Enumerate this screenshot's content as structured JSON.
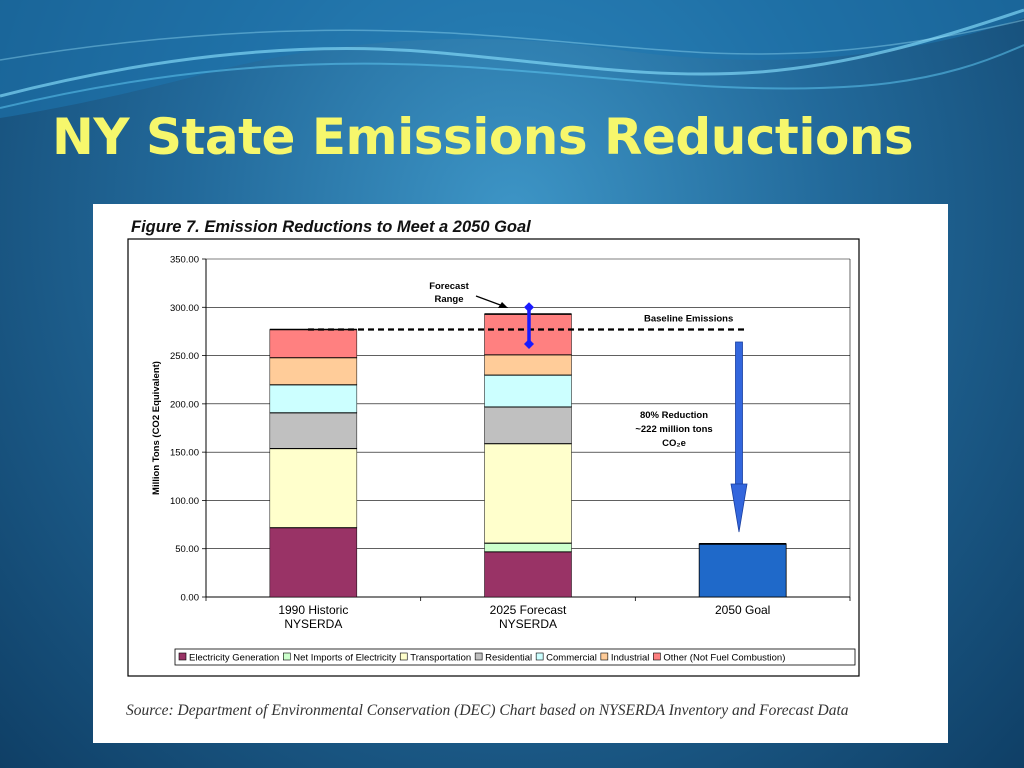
{
  "slide": {
    "title": "NY State Emissions Reductions",
    "source": "Source: Department of Environmental Conservation (DEC) Chart based on NYSERDA Inventory and Forecast Data"
  },
  "colors": {
    "title": "#f6f76c",
    "background": "#22699a",
    "arrow": "#3366dd",
    "forecast_range": "#1a1aff",
    "goal_bar": "#1f69c9"
  },
  "chart_data": {
    "type": "bar",
    "stacked": true,
    "title": "Figure 7.  Emission Reductions to Meet a 2050 Goal",
    "ylabel": "Million Tons (CO2 Equivalent)",
    "xlabel": "",
    "ylim": [
      0,
      350
    ],
    "yticks": [
      "0.00",
      "50.00",
      "100.00",
      "150.00",
      "200.00",
      "250.00",
      "300.00",
      "350.00"
    ],
    "grid": true,
    "legend_position": "bottom",
    "categories": [
      "1990 Historic\nNYSERDA",
      "2025 Forecast\nNYSERDA",
      "2050 Goal"
    ],
    "series": [
      {
        "name": "Electricity Generation",
        "color": "#993366",
        "values": [
          72,
          47,
          0
        ]
      },
      {
        "name": "Net Imports of Electricity",
        "color": "#ccffcc",
        "values": [
          0,
          9,
          0
        ]
      },
      {
        "name": "Transportation",
        "color": "#ffffcc",
        "values": [
          82,
          103,
          0
        ]
      },
      {
        "name": "Residential",
        "color": "#c0c0c0",
        "values": [
          37,
          38,
          0
        ]
      },
      {
        "name": "Commercial",
        "color": "#ccffff",
        "values": [
          29,
          33,
          0
        ]
      },
      {
        "name": "Industrial",
        "color": "#ffcc99",
        "values": [
          28,
          21,
          0
        ]
      },
      {
        "name": "Other (Not Fuel Combustion)",
        "color": "#ff8080",
        "values": [
          29,
          42,
          0
        ]
      }
    ],
    "goal_value": 55,
    "baseline_value": 277,
    "forecast_range": [
      262,
      300
    ],
    "annotations": {
      "forecast_range": [
        "Forecast",
        "Range"
      ],
      "baseline": "Baseline Emissions",
      "reduction": [
        "80% Reduction",
        "~222 million tons",
        "CO₂e"
      ]
    }
  }
}
